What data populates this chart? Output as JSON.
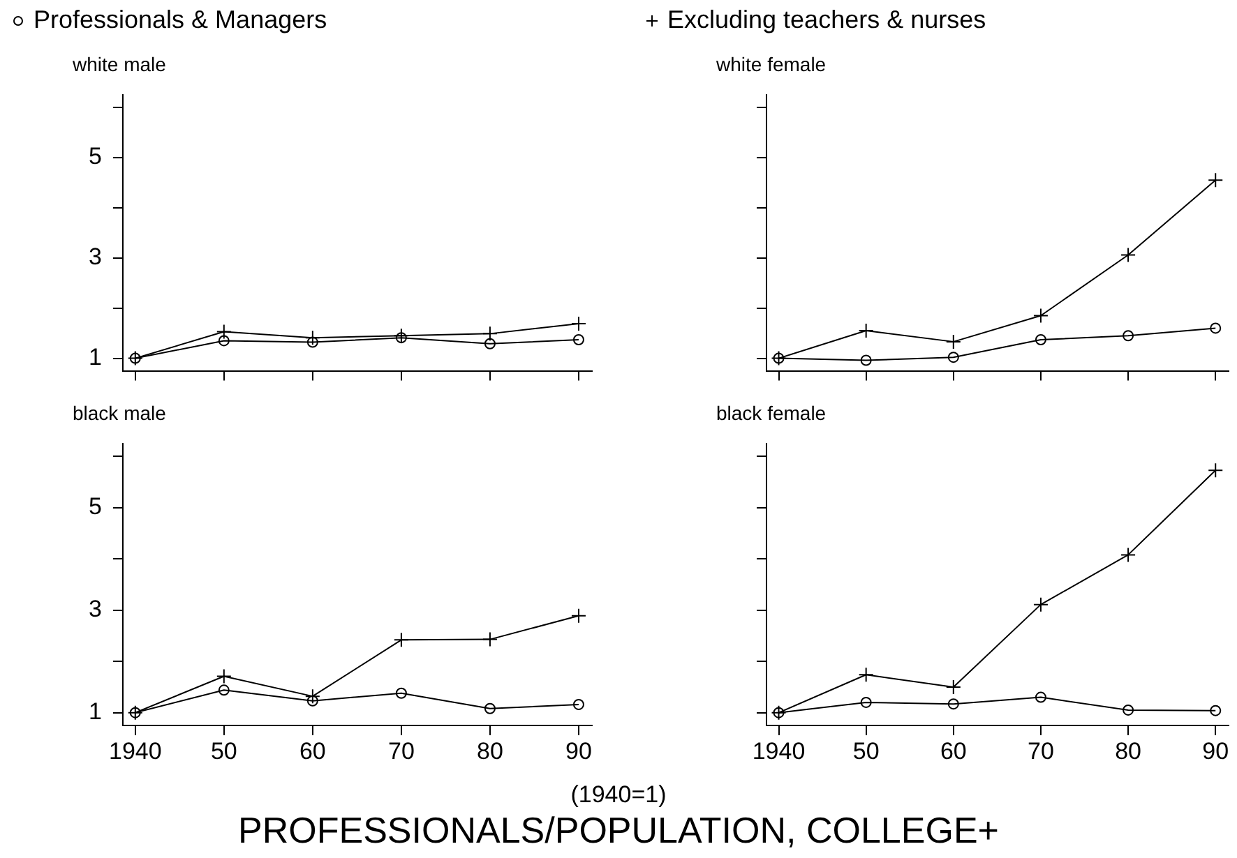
{
  "chart_data": [
    {
      "type": "line",
      "title": "white male",
      "legend": "top",
      "tick_labels": "y",
      "x": [
        1940,
        1950,
        1960,
        1970,
        1980,
        1990
      ],
      "xlim": [
        1938.6,
        1991.5
      ],
      "xticks": [
        {
          "value": 1940,
          "label": null
        },
        {
          "value": 1950,
          "label": null
        },
        {
          "value": 1960,
          "label": null
        },
        {
          "value": 1970,
          "label": null
        },
        {
          "value": 1980,
          "label": null
        },
        {
          "value": 1990,
          "label": null
        }
      ],
      "ylim": [
        0.75,
        6.25
      ],
      "yticks": [
        1,
        {
          "value": 2,
          "label": null
        },
        3,
        {
          "value": 4,
          "label": null
        },
        5,
        {
          "value": 6,
          "label": null
        }
      ],
      "grid": false,
      "annotations": [
        "(1940=1)",
        "PROFESSIONALS/POPULATION, COLLEGE+"
      ],
      "series": [
        {
          "name": "Professionals & Managers",
          "color": "#000000",
          "marker": "circle",
          "values": [
            1,
            1.35,
            1.32,
            1.41,
            1.29,
            1.37
          ]
        },
        {
          "name": "Excluding teachers & nurses",
          "color": "#000000",
          "marker": "cross",
          "values": [
            1,
            1.53,
            1.41,
            1.45,
            1.49,
            1.69
          ]
        }
      ]
    },
    {
      "type": "line",
      "title": "white female",
      "tick_labels": false,
      "x": [
        1940,
        1950,
        1960,
        1970,
        1980,
        1990
      ],
      "xlim": [
        1938.6,
        1991.5
      ],
      "xticks": [
        {
          "value": 1940,
          "label": null
        },
        {
          "value": 1950,
          "label": null
        },
        {
          "value": 1960,
          "label": null
        },
        {
          "value": 1970,
          "label": null
        },
        {
          "value": 1980,
          "label": null
        },
        {
          "value": 1990,
          "label": null
        }
      ],
      "ylim": [
        0.75,
        6.25
      ],
      "yticks": [
        {
          "value": 1,
          "label": null
        },
        {
          "value": 2,
          "label": null
        },
        {
          "value": 3,
          "label": null
        },
        {
          "value": 4,
          "label": null
        },
        {
          "value": 5,
          "label": null
        },
        {
          "value": 6,
          "label": null
        }
      ],
      "grid": false,
      "series": [
        {
          "color": "#000000",
          "marker": "circle",
          "values": [
            1,
            0.96,
            1.02,
            1.37,
            1.45,
            1.6
          ]
        },
        {
          "color": "#000000",
          "marker": "cross",
          "values": [
            1,
            1.55,
            1.33,
            1.85,
            3.06,
            4.55
          ]
        }
      ]
    },
    {
      "type": "line",
      "title": "black male",
      "x": [
        1940,
        1950,
        1960,
        1970,
        1980,
        1990
      ],
      "xlim": [
        1938.6,
        1991.5
      ],
      "xticks": [
        {
          "value": 1940,
          "label": "1940"
        },
        {
          "value": 1950,
          "label": "50"
        },
        {
          "value": 1960,
          "label": "60"
        },
        {
          "value": 1970,
          "label": "70"
        },
        {
          "value": 1980,
          "label": "80"
        },
        {
          "value": 1990,
          "label": "90"
        }
      ],
      "ylim": [
        0.75,
        6.25
      ],
      "yticks": [
        1,
        {
          "value": 2,
          "label": null
        },
        3,
        {
          "value": 4,
          "label": null
        },
        5,
        {
          "value": 6,
          "label": null
        }
      ],
      "grid": false,
      "series": [
        {
          "color": "#000000",
          "marker": "circle",
          "values": [
            1,
            1.44,
            1.23,
            1.38,
            1.08,
            1.16
          ]
        },
        {
          "color": "#000000",
          "marker": "cross",
          "values": [
            1,
            1.71,
            1.32,
            2.42,
            2.43,
            2.89
          ]
        }
      ]
    },
    {
      "type": "line",
      "title": "black female",
      "tick_labels": "x",
      "x": [
        1940,
        1950,
        1960,
        1970,
        1980,
        1990
      ],
      "xlim": [
        1938.6,
        1991.5
      ],
      "xticks": [
        {
          "value": 1940,
          "label": "1940"
        },
        {
          "value": 1950,
          "label": "50"
        },
        {
          "value": 1960,
          "label": "60"
        },
        {
          "value": 1970,
          "label": "70"
        },
        {
          "value": 1980,
          "label": "80"
        },
        {
          "value": 1990,
          "label": "90"
        }
      ],
      "ylim": [
        0.75,
        6.25
      ],
      "yticks": [
        {
          "value": 1,
          "label": null
        },
        {
          "value": 2,
          "label": null
        },
        {
          "value": 3,
          "label": null
        },
        {
          "value": 4,
          "label": null
        },
        {
          "value": 5,
          "label": null
        },
        {
          "value": 6,
          "label": null
        }
      ],
      "grid": false,
      "series": [
        {
          "color": "#000000",
          "marker": "circle",
          "values": [
            1,
            1.2,
            1.17,
            1.3,
            1.05,
            1.04
          ]
        },
        {
          "color": "#000000",
          "marker": "cross",
          "values": [
            1,
            1.74,
            1.5,
            3.11,
            4.08,
            5.73
          ]
        }
      ]
    }
  ]
}
